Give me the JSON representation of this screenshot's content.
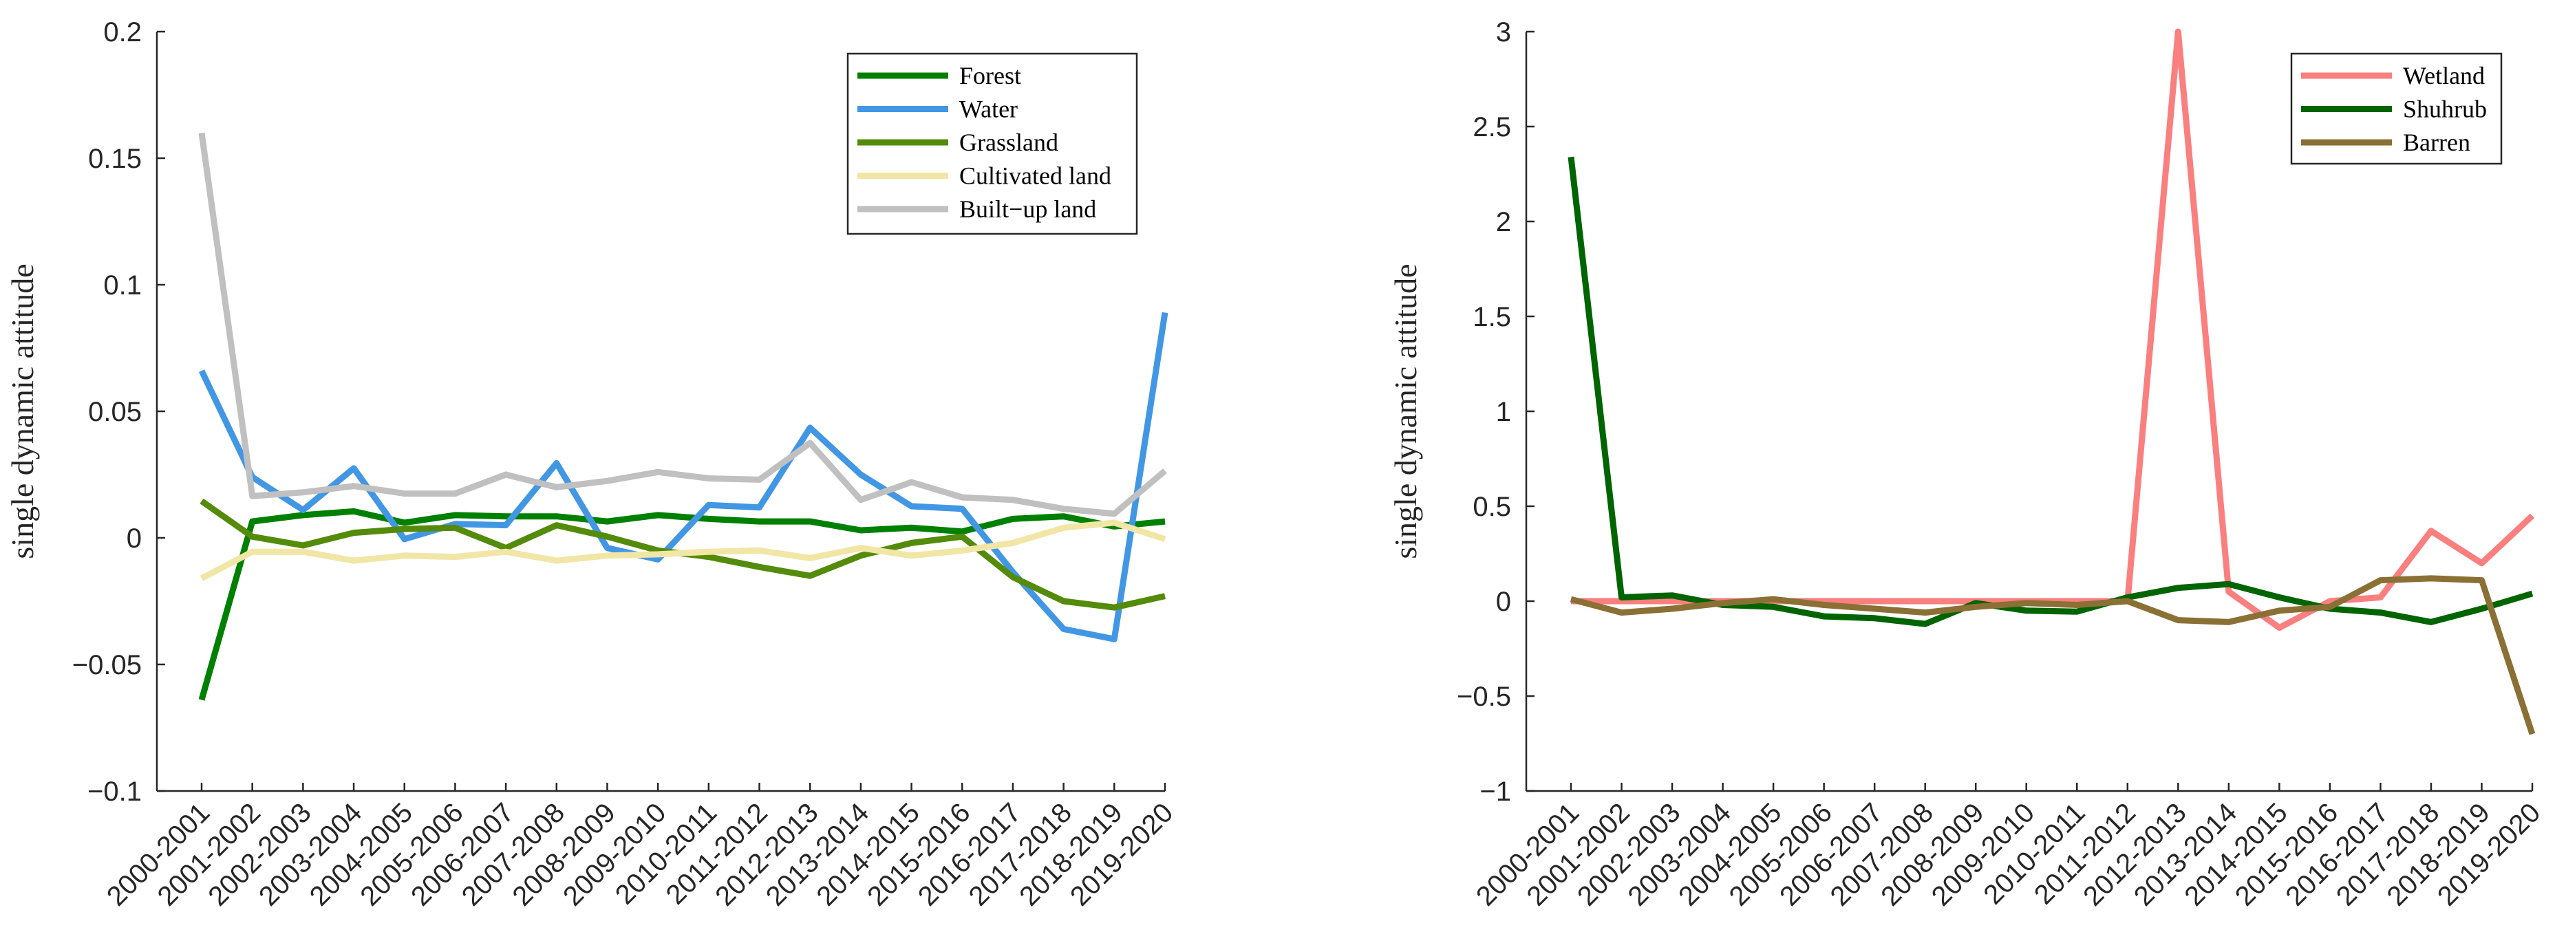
{
  "chart_data": [
    {
      "type": "line",
      "title": "",
      "xlabel": "",
      "ylabel": "single dynamic attitude",
      "ylim": [
        -0.1,
        0.2
      ],
      "yticks": [
        -0.1,
        -0.05,
        0,
        0.05,
        0.1,
        0.15,
        0.2
      ],
      "ytick_labels": [
        "−0.1",
        "−0.05",
        "0",
        "0.05",
        "0.1",
        "0.15",
        "0.2"
      ],
      "categories": [
        "2000-2001",
        "2001-2002",
        "2002-2003",
        "2003-2004",
        "2004-2005",
        "2005-2006",
        "2006-2007",
        "2007-2008",
        "2008-2009",
        "2009-2010",
        "2010-2011",
        "2011-2012",
        "2012-2013",
        "2013-2014",
        "2014-2015",
        "2015-2016",
        "2016-2017",
        "2017-2018",
        "2018-2019",
        "2019-2020"
      ],
      "legend_position": "top-right",
      "series": [
        {
          "name": "Forest",
          "color": "#008000",
          "values": [
            -0.064,
            0.0065,
            0.009,
            0.0105,
            0.006,
            0.009,
            0.0085,
            0.0085,
            0.0065,
            0.009,
            0.0075,
            0.0065,
            0.0065,
            0.003,
            0.004,
            0.0025,
            0.0075,
            0.0085,
            0.0045,
            0.0065
          ]
        },
        {
          "name": "Water",
          "color": "#4297e4",
          "values": [
            0.066,
            0.024,
            0.011,
            0.0275,
            -0.0005,
            0.0055,
            0.005,
            0.0295,
            -0.004,
            -0.0085,
            0.013,
            0.012,
            0.0435,
            0.025,
            0.0125,
            0.0115,
            -0.0135,
            -0.036,
            -0.04,
            0.089
          ]
        },
        {
          "name": "Grassland",
          "color": "#548b0a",
          "values": [
            0.0145,
            0.0005,
            -0.003,
            0.002,
            0.0035,
            0.004,
            -0.004,
            0.005,
            0.0005,
            -0.005,
            -0.0075,
            -0.0115,
            -0.015,
            -0.007,
            -0.002,
            0.0005,
            -0.0155,
            -0.025,
            -0.0275,
            -0.023
          ]
        },
        {
          "name": "Cultivated land",
          "color": "#f1e6a6",
          "values": [
            -0.016,
            -0.0055,
            -0.0055,
            -0.009,
            -0.007,
            -0.0075,
            -0.0055,
            -0.009,
            -0.007,
            -0.0065,
            -0.0055,
            -0.005,
            -0.008,
            -0.004,
            -0.007,
            -0.005,
            -0.002,
            0.004,
            0.006,
            -0.0005
          ]
        },
        {
          "name": "Built−up land",
          "color": "#c0c0c0",
          "values": [
            0.16,
            0.0165,
            0.018,
            0.0205,
            0.0175,
            0.0175,
            0.025,
            0.02,
            0.0225,
            0.026,
            0.0235,
            0.023,
            0.0375,
            0.015,
            0.022,
            0.016,
            0.015,
            0.0115,
            0.0095,
            0.0265
          ]
        }
      ]
    },
    {
      "type": "line",
      "title": "",
      "xlabel": "",
      "ylabel": "single dynamic attitude",
      "ylim": [
        -1,
        3
      ],
      "yticks": [
        -1,
        -0.5,
        0,
        0.5,
        1,
        1.5,
        2,
        2.5,
        3
      ],
      "ytick_labels": [
        "−1",
        "−0.5",
        "0",
        "0.5",
        "1",
        "1.5",
        "2",
        "2.5",
        "3"
      ],
      "categories": [
        "2000-2001",
        "2001-2002",
        "2002-2003",
        "2003-2004",
        "2004-2005",
        "2005-2006",
        "2006-2007",
        "2007-2008",
        "2008-2009",
        "2009-2010",
        "2010-2011",
        "2011-2012",
        "2012-2013",
        "2013-2014",
        "2014-2015",
        "2015-2016",
        "2016-2017",
        "2017-2018",
        "2018-2019",
        "2019-2020"
      ],
      "legend_position": "top-right",
      "series": [
        {
          "name": "Wetland",
          "color": "#fa7f7f",
          "values": [
            0,
            0,
            0,
            0,
            0,
            0,
            0,
            0,
            0,
            0,
            0,
            0,
            3.0,
            0.05,
            -0.14,
            0.0,
            0.02,
            0.37,
            0.2,
            0.45
          ]
        },
        {
          "name": "Shuhrub",
          "color": "#006400",
          "values": [
            2.34,
            0.02,
            0.03,
            -0.02,
            -0.03,
            -0.08,
            -0.09,
            -0.12,
            -0.01,
            -0.05,
            -0.055,
            0.02,
            0.07,
            0.09,
            0.02,
            -0.04,
            -0.06,
            -0.11,
            -0.04,
            0.04
          ]
        },
        {
          "name": "Barren",
          "color": "#8b7035",
          "values": [
            0.01,
            -0.06,
            -0.04,
            -0.01,
            0.01,
            -0.02,
            -0.04,
            -0.06,
            -0.03,
            -0.01,
            -0.02,
            0.0,
            -0.1,
            -0.11,
            -0.05,
            -0.03,
            0.11,
            0.12,
            0.11,
            -0.7
          ]
        }
      ]
    }
  ]
}
